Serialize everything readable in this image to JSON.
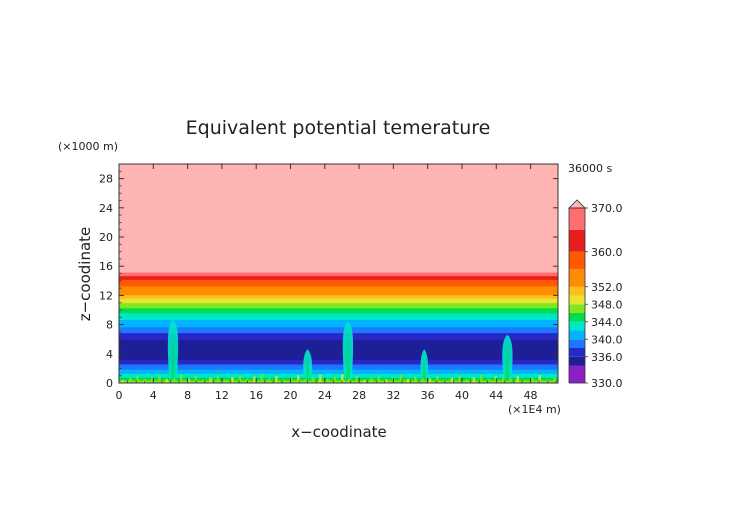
{
  "chart_data": {
    "type": "heatmap",
    "title": "Equivalent potential temerature",
    "xlabel": "x−coodinate",
    "ylabel": "z−coodinate",
    "x_unit": "(×1E4 m)",
    "y_unit": "(×1000 m)",
    "time_label": "36000 s",
    "xlim": [
      0,
      51.2
    ],
    "ylim": [
      0,
      30
    ],
    "x_ticks": [
      "0",
      "4",
      "8",
      "12",
      "16",
      "20",
      "24",
      "28",
      "32",
      "36",
      "40",
      "44",
      "48"
    ],
    "y_ticks": [
      "0",
      "4",
      "8",
      "12",
      "16",
      "20",
      "24",
      "28"
    ],
    "colorbar": {
      "min": 330,
      "max": 370,
      "extend": "max",
      "labels": [
        "330.0",
        "336.0",
        "340.0",
        "344.0",
        "348.0",
        "352.0",
        "360.0",
        "370.0"
      ],
      "levels": [
        {
          "lo": 330,
          "hi": 334,
          "color": "#8a20c8"
        },
        {
          "lo": 334,
          "hi": 336,
          "color": "#1e1e96"
        },
        {
          "lo": 336,
          "hi": 338,
          "color": "#2828c8"
        },
        {
          "lo": 338,
          "hi": 340,
          "color": "#1e78ff"
        },
        {
          "lo": 340,
          "hi": 342,
          "color": "#00b4ff"
        },
        {
          "lo": 342,
          "hi": 344,
          "color": "#00e6c8"
        },
        {
          "lo": 344,
          "hi": 346,
          "color": "#00dc50"
        },
        {
          "lo": 346,
          "hi": 348,
          "color": "#82e61e"
        },
        {
          "lo": 348,
          "hi": 350,
          "color": "#e6e632"
        },
        {
          "lo": 350,
          "hi": 352,
          "color": "#ffbe1e"
        },
        {
          "lo": 352,
          "hi": 356,
          "color": "#ff8c00"
        },
        {
          "lo": 356,
          "hi": 360,
          "color": "#ff5a00"
        },
        {
          "lo": 360,
          "hi": 365,
          "color": "#e61e1e"
        },
        {
          "lo": 365,
          "hi": 370,
          "color": "#ff6e6e"
        },
        {
          "lo": 370,
          "hi": 380,
          "color": "#ffb4b4"
        }
      ]
    },
    "background_profile": [
      {
        "z": 0.0,
        "theta_e": 348
      },
      {
        "z": 0.6,
        "theta_e": 345
      },
      {
        "z": 1.5,
        "theta_e": 341
      },
      {
        "z": 2.6,
        "theta_e": 338
      },
      {
        "z": 3.5,
        "theta_e": 335
      },
      {
        "z": 5.5,
        "theta_e": 335
      },
      {
        "z": 6.5,
        "theta_e": 337
      },
      {
        "z": 7.3,
        "theta_e": 339
      },
      {
        "z": 8.2,
        "theta_e": 341
      },
      {
        "z": 9.2,
        "theta_e": 343
      },
      {
        "z": 10.3,
        "theta_e": 346
      },
      {
        "z": 11.3,
        "theta_e": 349
      },
      {
        "z": 12.1,
        "theta_e": 352
      },
      {
        "z": 13.3,
        "theta_e": 356
      },
      {
        "z": 14.2,
        "theta_e": 360
      },
      {
        "z": 14.8,
        "theta_e": 366
      },
      {
        "z": 15.4,
        "theta_e": 372
      },
      {
        "z": 30.0,
        "theta_e": 372
      }
    ],
    "convective_plumes": [
      {
        "x": 6.3,
        "z_top": 8.6,
        "width": 1.0
      },
      {
        "x": 26.7,
        "z_top": 8.4,
        "width": 1.0
      },
      {
        "x": 45.3,
        "z_top": 6.6,
        "width": 1.0
      },
      {
        "x": 22.0,
        "z_top": 4.6,
        "width": 0.8
      },
      {
        "x": 35.6,
        "z_top": 4.6,
        "width": 0.6
      }
    ]
  }
}
